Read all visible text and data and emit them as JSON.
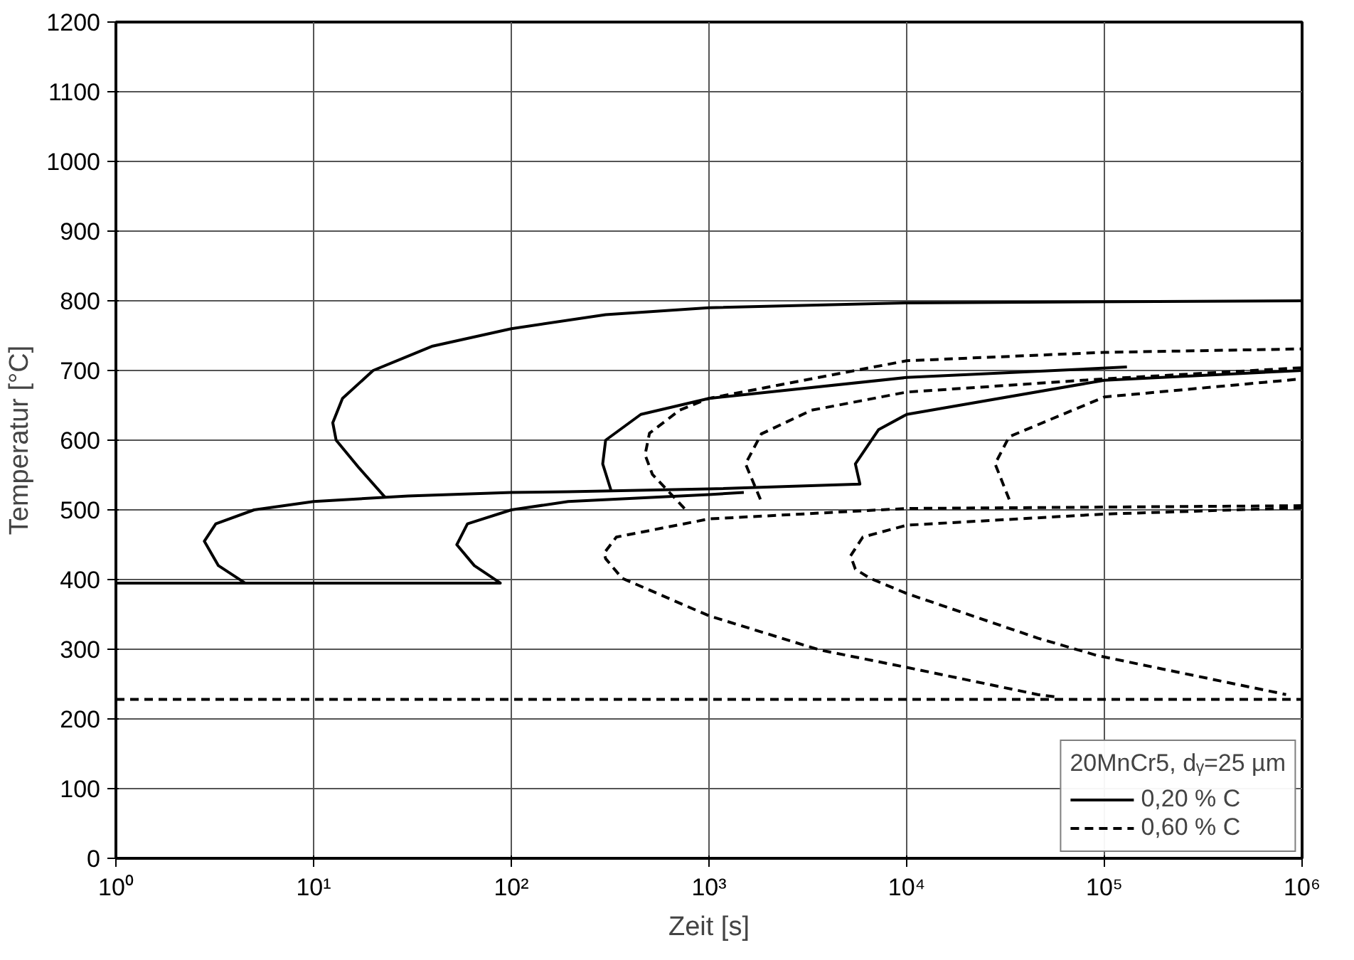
{
  "chart_data": {
    "type": "line",
    "xlabel": "Zeit [s]",
    "ylabel": "Temperatur [°C]",
    "legend_title": "20MnCr5, dᵧ=25 µm",
    "log": "x",
    "grid": true,
    "legend": "bottom right",
    "marker": "none",
    "xlim": [
      1,
      1000000
    ],
    "xticks": [
      {
        "value": 1,
        "label": "10⁰"
      },
      {
        "value": 10,
        "label": "10¹"
      },
      {
        "value": 100,
        "label": "10²"
      },
      {
        "value": 1000,
        "label": "10³"
      },
      {
        "value": 10000,
        "label": "10⁴"
      },
      {
        "value": 100000,
        "label": "10⁵"
      },
      {
        "value": 1000000,
        "label": "10⁶"
      }
    ],
    "ylim": [
      0,
      1200
    ],
    "yticks": [
      0,
      100,
      200,
      300,
      400,
      500,
      600,
      700,
      800,
      900,
      1000,
      1100,
      1200
    ],
    "series": [
      {
        "name": "0,20 % C",
        "color": "#000000",
        "line_style": "solid",
        "x": [
          23,
          17,
          13,
          12.5,
          14,
          20,
          40,
          100,
          300,
          1000,
          10000,
          1000000
        ],
        "values": [
          518,
          560,
          600,
          625,
          660,
          700,
          735,
          760,
          780,
          790,
          797,
          800
        ]
      },
      {
        "color": "#000000",
        "line_style": "solid",
        "x": [
          4.5,
          3.3,
          2.8,
          3.2,
          5,
          10,
          30,
          100,
          194,
          1000,
          5800,
          5500,
          7200,
          10000,
          100000,
          1000000
        ],
        "values": [
          395,
          420,
          455,
          480,
          500,
          512,
          520,
          525,
          526,
          530,
          537,
          566,
          615,
          637,
          686,
          700
        ]
      },
      {
        "color": "#000000",
        "line_style": "solid",
        "x": [
          1,
          88,
          65,
          53,
          60,
          100,
          194,
          1000,
          1500
        ],
        "values": [
          395,
          395,
          420,
          450,
          480,
          500,
          512,
          522,
          525
        ]
      },
      {
        "color": "#000000",
        "line_style": "solid",
        "x": [
          321,
          290,
          300,
          452,
          1000,
          10000,
          130000
        ],
        "values": [
          526,
          566,
          600,
          637,
          660,
          690,
          705
        ]
      },
      {
        "name": "0,60 % C",
        "color": "#000000",
        "line_style": "dashed",
        "x": [
          752,
          517,
          475,
          500,
          710,
          1000,
          10000,
          100000,
          1000000
        ],
        "values": [
          502,
          551,
          579,
          610,
          643,
          660,
          714,
          726,
          731
        ]
      },
      {
        "color": "#000000",
        "line_style": "dashed",
        "x": [
          1820,
          1530,
          1840,
          3300,
          10000,
          100000,
          1000000
        ],
        "values": [
          515,
          566,
          609,
          643,
          669,
          688,
          704
        ]
      },
      {
        "color": "#000000",
        "line_style": "dashed",
        "x": [
          33000,
          28000,
          33000,
          100000,
          1000000
        ],
        "values": [
          515,
          566,
          605,
          662,
          688
        ]
      },
      {
        "color": "#000000",
        "line_style": "dashed",
        "x": [
          1000000,
          10000,
          1000,
          340,
          295,
          300,
          363,
          1000,
          3630,
          10000,
          46000,
          59000
        ],
        "values": [
          506,
          502,
          487,
          461,
          438,
          430,
          402,
          348,
          299,
          274,
          235,
          231
        ]
      },
      {
        "color": "#000000",
        "line_style": "dashed",
        "x": [
          1000000,
          100000,
          10000,
          6000,
          5200,
          5500,
          6500,
          10000,
          46000,
          92000,
          830000
        ],
        "values": [
          503,
          494,
          478,
          461,
          434,
          415,
          402,
          380,
          316,
          291,
          235
        ]
      },
      {
        "color": "#000000",
        "line_style": "dashed",
        "x": [
          1,
          1000000
        ],
        "values": [
          228,
          228
        ]
      }
    ]
  }
}
